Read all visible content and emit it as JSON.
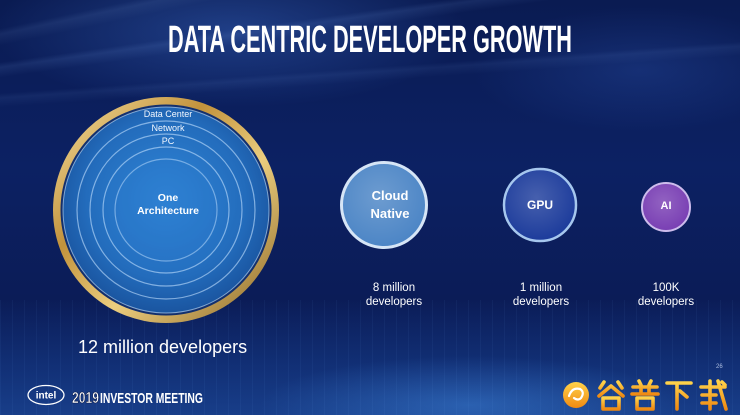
{
  "slide": {
    "title": "DATA CENTRIC DEVELOPER GROWTH",
    "page_number": "26"
  },
  "one_architecture": {
    "rings": [
      "Data Center",
      "Network",
      "PC"
    ],
    "center_label": "One Architecture",
    "caption": "12 million developers"
  },
  "segments": [
    {
      "label": "Cloud Native",
      "caption": "8 million developers",
      "fill": "#4d86c6",
      "border": "#d6e5f6"
    },
    {
      "label": "GPU",
      "caption": "1 million developers",
      "fill": "#1e3d9c",
      "border": "#a6c7ee"
    },
    {
      "label": "AI",
      "caption": "100K developers",
      "fill": "#7a40b4",
      "border": "#cdbcec"
    }
  ],
  "footer": {
    "logo": "intel",
    "event_year": "2019",
    "event_name": "INVESTOR MEETING"
  },
  "watermark": {
    "text": "谷普下载",
    "color": "#f39a1e"
  },
  "colors": {
    "background": "#0b1d58",
    "ring_gold": "#d9b566",
    "disc_blue": "#2570bf"
  }
}
